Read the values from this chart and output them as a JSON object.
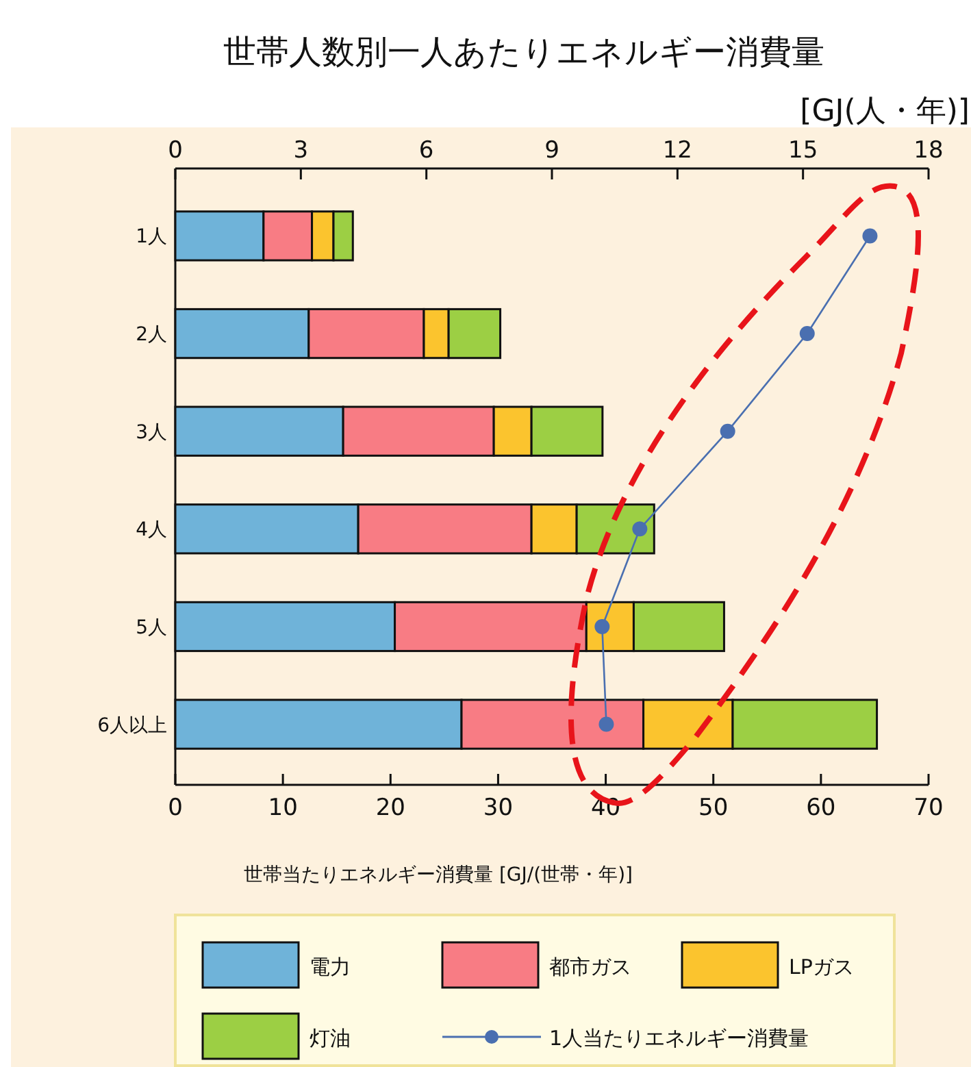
{
  "chart_data": {
    "type": "bar",
    "orientation": "horizontal",
    "stacked": true,
    "title": "世帯人数別一人あたりエネルギー消費量",
    "x2label": "[GJ(人・年)]",
    "xlabel": "世帯当たりエネルギー消費量 [GJ/(世帯・年)]",
    "categories": [
      "1人",
      "2人",
      "3人",
      "4人",
      "5人",
      "6人以上"
    ],
    "xlim": [
      0,
      70
    ],
    "xticks": [
      0,
      10,
      20,
      30,
      40,
      50,
      60,
      70
    ],
    "x2lim": [
      0,
      18
    ],
    "x2ticks": [
      0,
      3,
      6,
      9,
      12,
      15,
      18
    ],
    "series": [
      {
        "name": "電力",
        "color": "#6fb3d9",
        "values": [
          8.2,
          12.4,
          15.6,
          17.0,
          20.4,
          26.6
        ]
      },
      {
        "name": "都市ガス",
        "color": "#f87c84",
        "values": [
          4.5,
          10.7,
          14.0,
          16.1,
          17.8,
          16.9
        ]
      },
      {
        "name": "LPガス",
        "color": "#fbc42e",
        "values": [
          2.0,
          2.3,
          3.5,
          4.2,
          4.4,
          8.3
        ]
      },
      {
        "name": "灯油",
        "color": "#9ccf44",
        "values": [
          1.8,
          4.8,
          6.6,
          7.2,
          8.4,
          13.4
        ]
      },
      {
        "name": "1人当たりエネルギー消費量",
        "type": "line",
        "axis": "x2",
        "color": "#4a6fb0",
        "marker": "circle",
        "values": [
          16.6,
          15.1,
          13.2,
          11.1,
          10.2,
          10.3
        ]
      }
    ],
    "grid": false,
    "legend": "bottom"
  }
}
